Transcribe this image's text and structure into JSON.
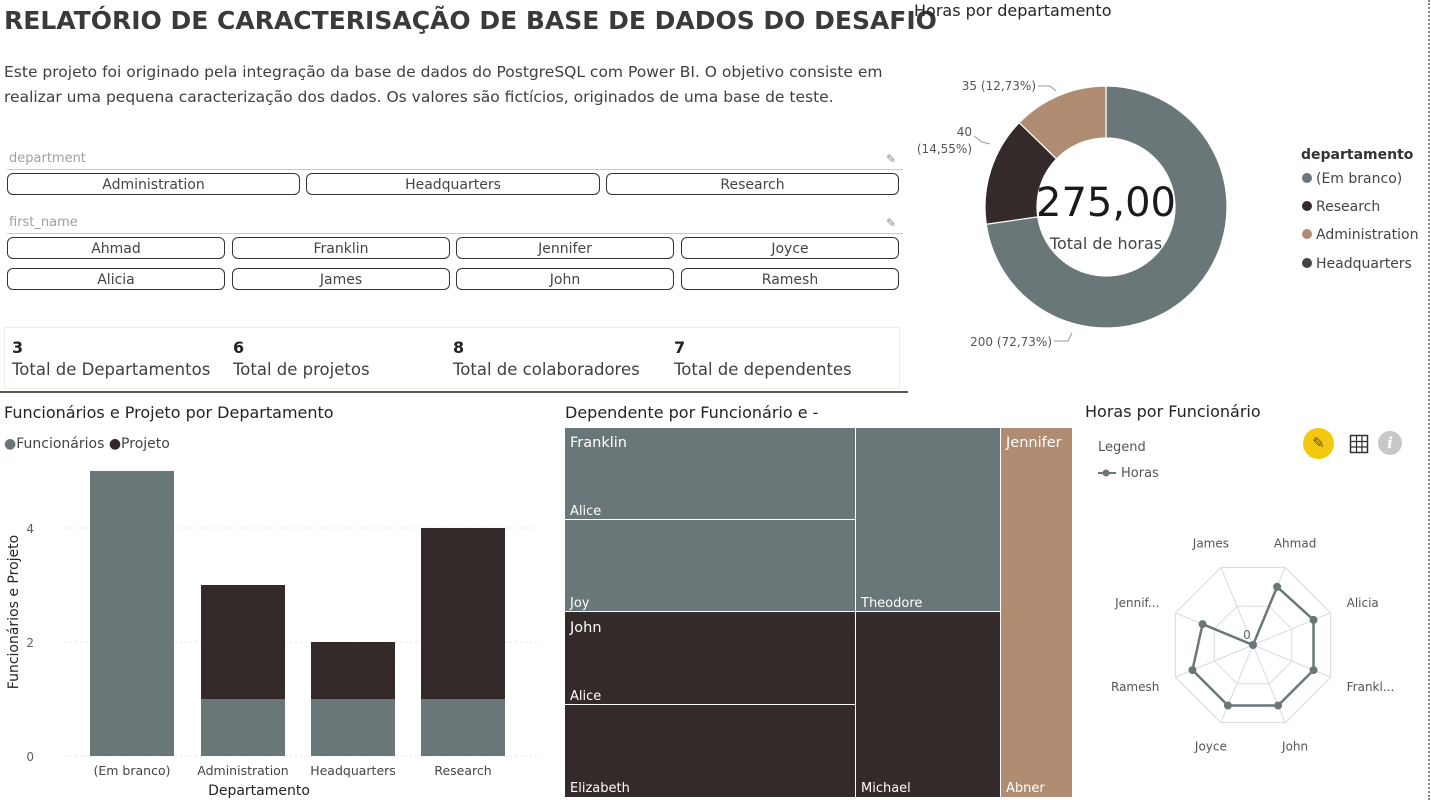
{
  "header": {
    "title": "RELATÓRIO DE CARACTERISAÇÃO DE BASE DE DADOS DO DESAFIO",
    "description": "Este projeto foi originado pela integração da base de dados do PostgreSQL com Power BI. O objetivo consiste em realizar uma pequena caracterização dos dados. Os valores são fictícios, originados de uma base de teste."
  },
  "slicers": {
    "department": {
      "label": "department",
      "options": [
        "Administration",
        "Headquarters",
        "Research"
      ]
    },
    "first_name": {
      "label": "first_name",
      "options": [
        "Ahmad",
        "Franklin",
        "Jennifer",
        "Joyce",
        "Alicia",
        "James",
        "John",
        "Ramesh"
      ]
    }
  },
  "cards": [
    {
      "value": "3",
      "label": "Total de Departamentos"
    },
    {
      "value": "6",
      "label": "Total de projetos"
    },
    {
      "value": "8",
      "label": "Total de colaboradores"
    },
    {
      "value": "7",
      "label": "Total de dependentes"
    }
  ],
  "colors": {
    "gray": "#6a7778",
    "dark": "#342a29",
    "tan": "#b08c72",
    "charcoal": "#3d4448"
  },
  "donut": {
    "title": "Horas por departamento",
    "center_value": "275,00",
    "center_label": "Total de horas",
    "legend_title": "departamento",
    "slices": [
      {
        "name": "(Em branco)",
        "value": 200,
        "label": "200 (72,73%)",
        "color": "#6a7778"
      },
      {
        "name": "Research",
        "value": 40,
        "label_line1": "40",
        "label_line2": "(14,55%)",
        "color": "#342a29"
      },
      {
        "name": "Administration",
        "value": 35,
        "label": "35 (12,73%)",
        "color": "#b08c72"
      },
      {
        "name": "Headquarters",
        "value": 0,
        "color": "#3d4448"
      }
    ]
  },
  "bar_chart": {
    "title": "Funcionários e Projeto por Departamento",
    "legend": [
      "Funcionários",
      "Projeto"
    ],
    "xlabel": "Departamento",
    "ylabel": "Funcionários e Projeto"
  },
  "treemap": {
    "title": "Dependente por Funcionário e -",
    "groups": [
      {
        "name": "Franklin",
        "items": [
          {
            "name": "Alice"
          },
          {
            "name": "Joy"
          },
          {
            "name": "Theodore"
          }
        ]
      },
      {
        "name": "John",
        "items": [
          {
            "name": "Alice"
          },
          {
            "name": "Elizabeth"
          },
          {
            "name": "Michael"
          }
        ]
      },
      {
        "name": "Jennifer",
        "items": [
          {
            "name": "Abner"
          }
        ]
      }
    ]
  },
  "radar": {
    "title": "Horas por Funcionário",
    "legend_title": "Legend",
    "legend_item": "Horas",
    "zero_label": "0",
    "axes": [
      "Ahmad",
      "Alicia",
      "Frankl...",
      "John",
      "Joyce",
      "Ramesh",
      "Jennif...",
      "James"
    ],
    "values": [
      0.75,
      0.78,
      0.78,
      0.78,
      0.78,
      0.78,
      0.65,
      0.0
    ]
  },
  "chart_data": [
    {
      "type": "bar",
      "title": "Funcionários e Projeto por Departamento",
      "xlabel": "Departamento",
      "ylabel": "Funcionários e Projeto",
      "categories": [
        "(Em branco)",
        "Administration",
        "Headquarters",
        "Research"
      ],
      "series": [
        {
          "name": "Funcionários",
          "values": [
            5,
            1,
            1,
            1
          ]
        },
        {
          "name": "Projeto",
          "values": [
            0,
            2,
            1,
            3
          ]
        }
      ],
      "yticks": [
        "0",
        "2",
        "4"
      ],
      "ylim": [
        0,
        5.5
      ],
      "stacked": true
    },
    {
      "type": "pie",
      "title": "Horas por departamento",
      "categories": [
        "(Em branco)",
        "Research",
        "Administration",
        "Headquarters"
      ],
      "values": [
        200,
        40,
        35,
        0
      ]
    },
    {
      "type": "treemap",
      "title": "Dependente por Funcionário e -",
      "groups": [
        "Franklin",
        "John",
        "Jennifer"
      ]
    },
    {
      "type": "radar",
      "title": "Horas por Funcionário",
      "categories": [
        "Ahmad",
        "Alicia",
        "Frankl...",
        "John",
        "Joyce",
        "Ramesh",
        "Jennif...",
        "James"
      ],
      "series": [
        {
          "name": "Horas",
          "values": [
            0.75,
            0.78,
            0.78,
            0.78,
            0.78,
            0.78,
            0.65,
            0.0
          ]
        }
      ]
    }
  ]
}
